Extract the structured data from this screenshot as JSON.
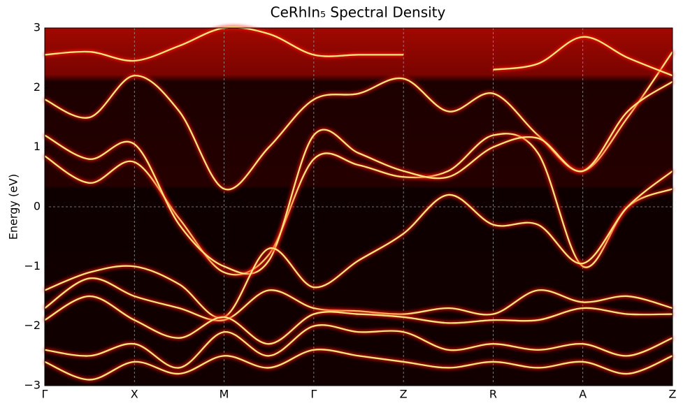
{
  "chart_data": {
    "type": "line",
    "title": "CeRhIn₅ Spectral Density",
    "ylabel": "Energy (eV)",
    "x": [
      0,
      0.5,
      1,
      1.5,
      2,
      2.5,
      3,
      3.5,
      4,
      4.5,
      5,
      5.5,
      6,
      6.5,
      7
    ],
    "xlim": [
      0,
      7
    ],
    "xticks": [
      {
        "value": 0,
        "label": "Γ"
      },
      {
        "value": 1,
        "label": "X"
      },
      {
        "value": 2,
        "label": "M"
      },
      {
        "value": 3,
        "label": "Γ"
      },
      {
        "value": 4,
        "label": "Z"
      },
      {
        "value": 5,
        "label": "R"
      },
      {
        "value": 6,
        "label": "A"
      },
      {
        "value": 7,
        "label": "Z"
      }
    ],
    "ylim": [
      -3,
      3
    ],
    "yticks": [
      {
        "value": -3,
        "label": "−3"
      },
      {
        "value": -2,
        "label": "−2"
      },
      {
        "value": -1,
        "label": "−1"
      },
      0,
      1,
      2,
      3
    ],
    "grid": true,
    "zero_line": true,
    "series": [
      {
        "color": "#ffe680",
        "values": [
          1.8,
          1.5,
          2.2,
          1.6,
          0.3,
          1.0,
          1.8,
          1.9,
          2.15,
          1.6,
          1.9,
          1.2,
          0.6,
          1.5,
          2.6
        ]
      },
      {
        "color": "#ffe680",
        "values": [
          0.85,
          0.4,
          0.75,
          -0.2,
          -1.1,
          -0.8,
          0.8,
          0.7,
          0.5,
          0.6,
          1.2,
          0.9,
          -1.0,
          0.0,
          0.3
        ]
      },
      {
        "color": "#ffe680",
        "values": [
          1.2,
          0.8,
          1.05,
          -0.3,
          -1.0,
          -0.9,
          1.2,
          0.9,
          0.6,
          0.5,
          1.0,
          1.15,
          0.6,
          1.6,
          2.1
        ]
      },
      {
        "color": "#ffe680",
        "values": [
          -1.4,
          -1.1,
          -1.0,
          -1.3,
          -1.85,
          -0.7,
          -1.35,
          -0.9,
          -0.45,
          0.2,
          -0.3,
          -0.3,
          -0.95,
          0.0,
          0.6
        ]
      },
      {
        "color": "#ffe680",
        "values": [
          -1.7,
          -1.2,
          -1.5,
          -1.7,
          -1.9,
          -1.4,
          -1.7,
          -1.75,
          -1.8,
          -1.7,
          -1.8,
          -1.4,
          -1.6,
          -1.5,
          -1.7
        ]
      },
      {
        "color": "#ffe680",
        "values": [
          -1.9,
          -1.5,
          -1.9,
          -2.2,
          -1.85,
          -2.3,
          -1.8,
          -1.8,
          -1.85,
          -1.95,
          -1.9,
          -1.9,
          -1.7,
          -1.8,
          -1.8
        ]
      },
      {
        "color": "#ffe680",
        "values": [
          -2.4,
          -2.5,
          -2.3,
          -2.7,
          -2.1,
          -2.5,
          -2.0,
          -2.1,
          -2.1,
          -2.4,
          -2.3,
          -2.4,
          -2.3,
          -2.5,
          -2.2
        ]
      },
      {
        "color": "#ffe680",
        "values": [
          -2.6,
          -2.9,
          -2.6,
          -2.8,
          -2.5,
          -2.7,
          -2.4,
          -2.5,
          -2.6,
          -2.7,
          -2.6,
          -2.7,
          -2.6,
          -2.8,
          -2.5
        ]
      },
      {
        "color": "#ffe680",
        "values": [
          2.55,
          2.6,
          2.45,
          2.7,
          3.0,
          2.9,
          2.55,
          2.55,
          2.55,
          null,
          2.3,
          2.4,
          2.85,
          2.5,
          2.2
        ]
      }
    ]
  }
}
